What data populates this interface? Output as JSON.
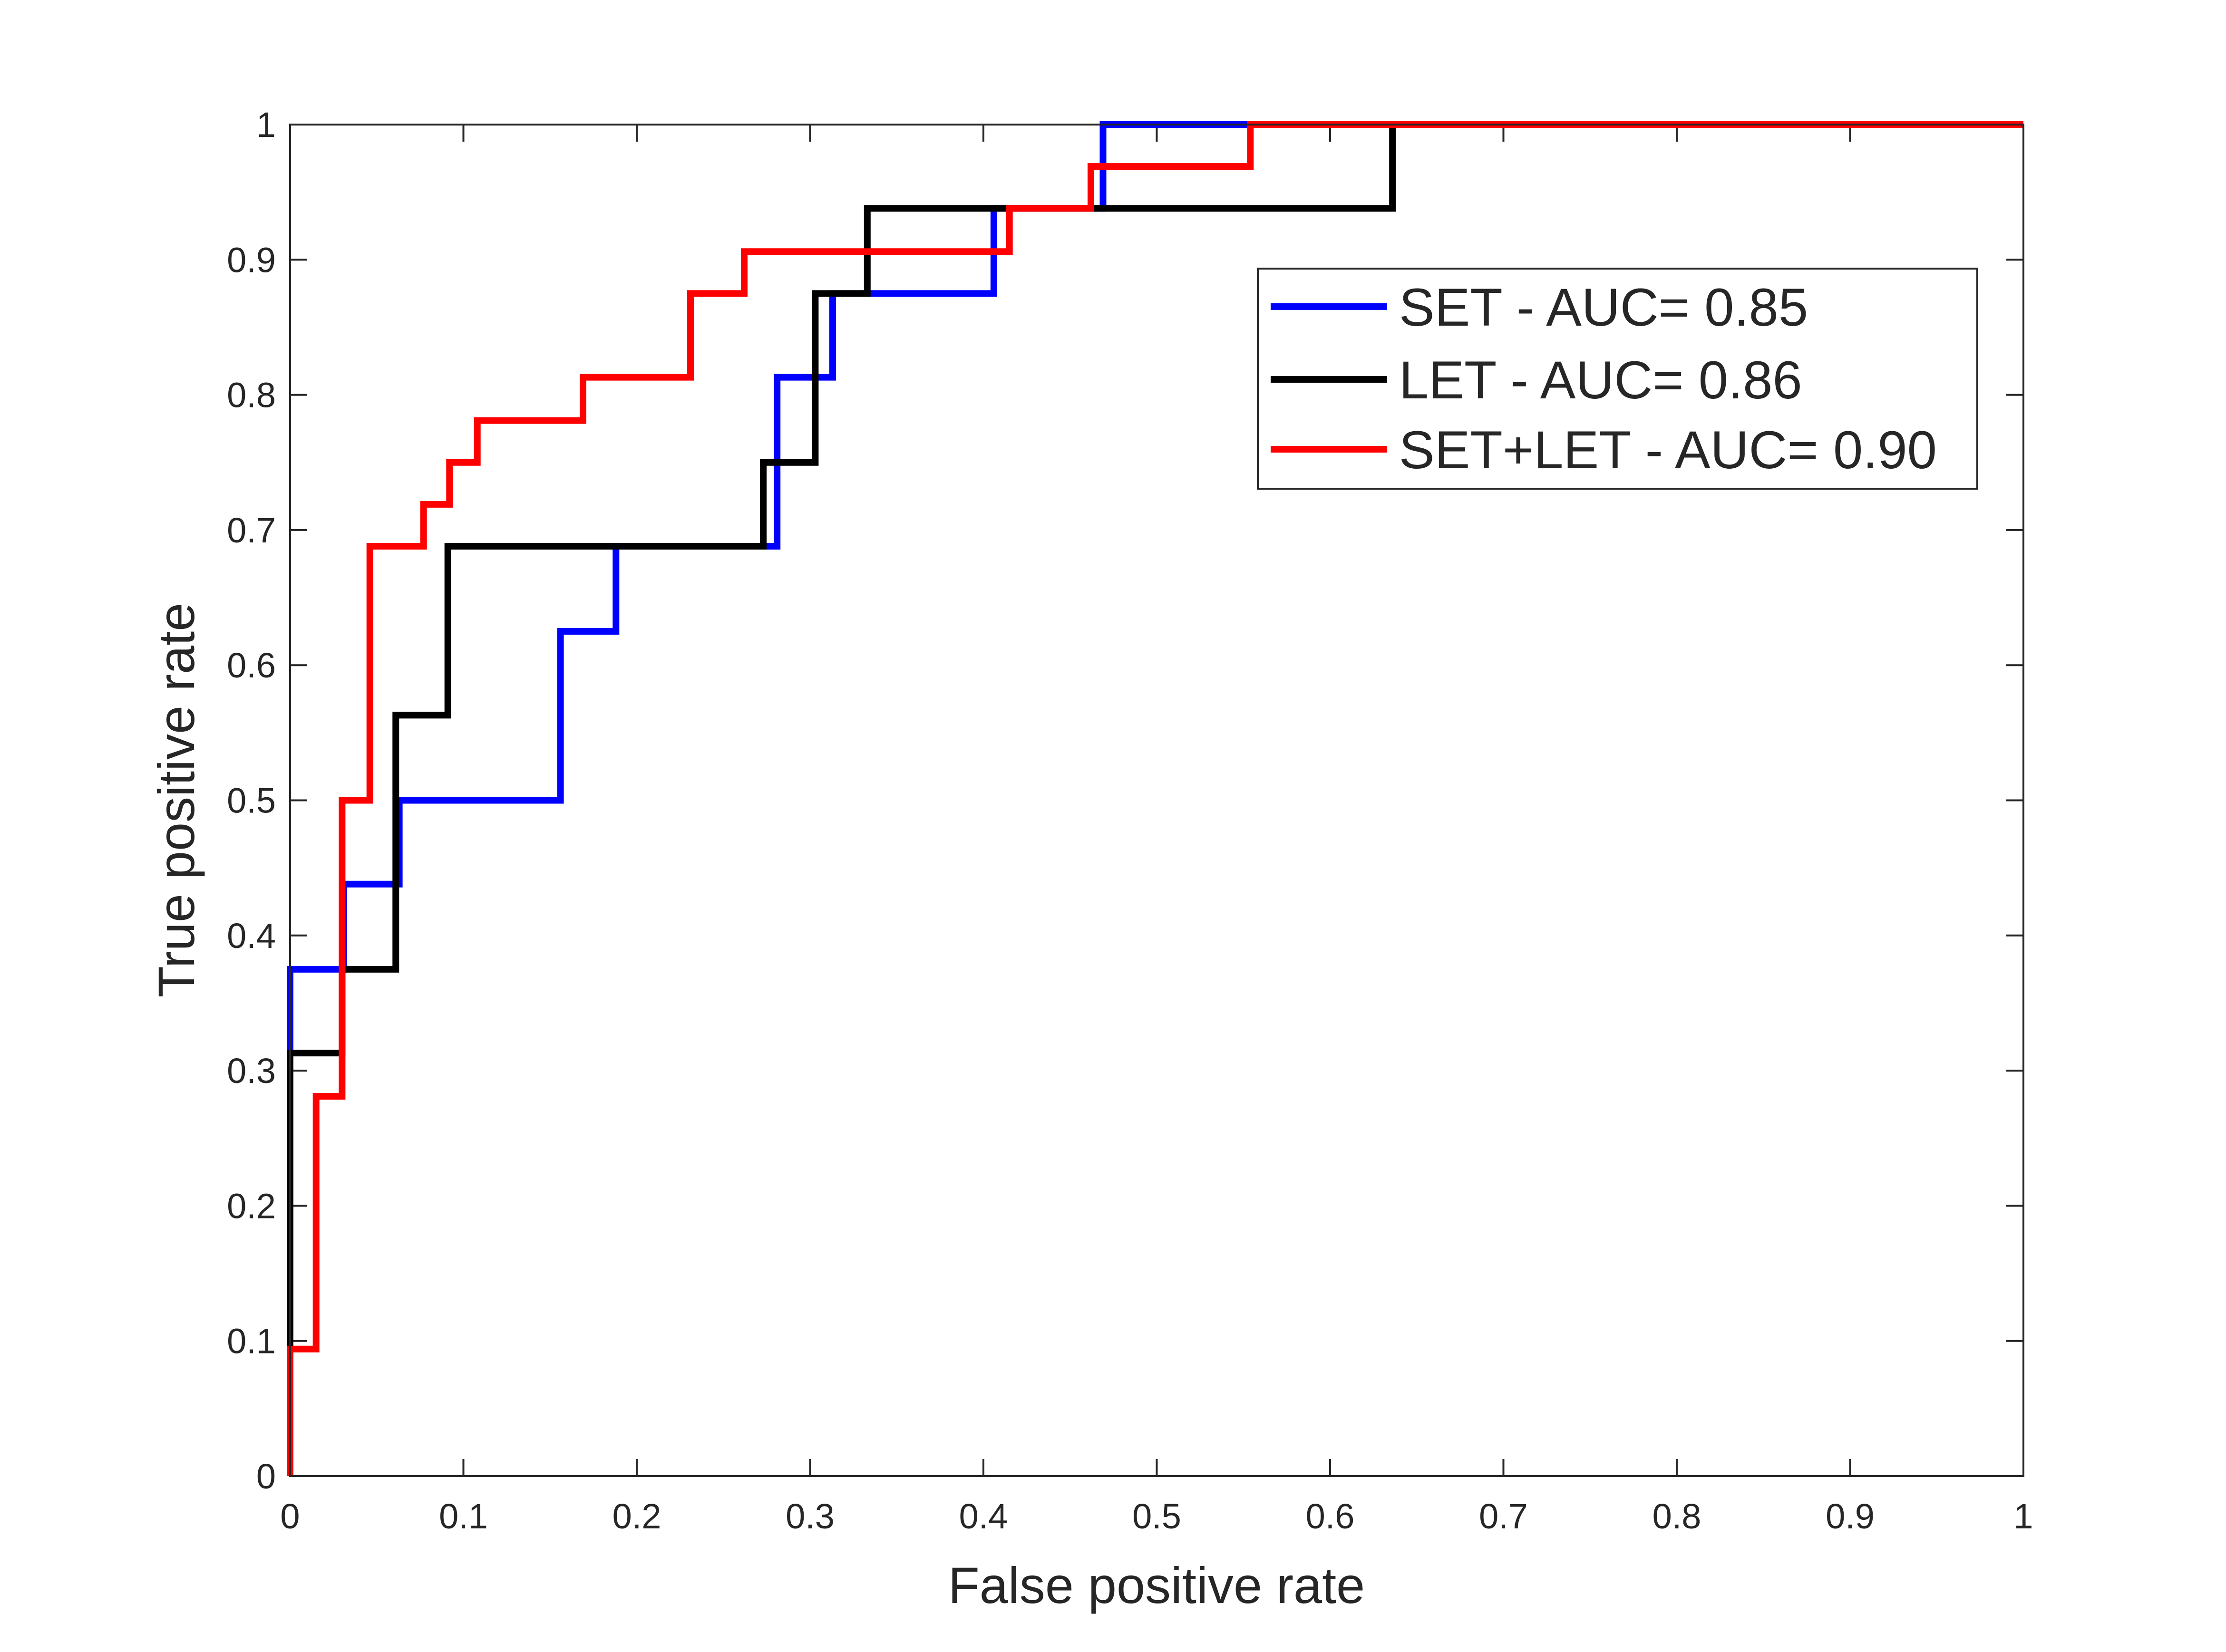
{
  "chart_data": {
    "type": "line",
    "title": "",
    "xlabel": "False positive rate",
    "ylabel": "True positive rate",
    "xlim": [
      0,
      1
    ],
    "ylim": [
      0,
      1
    ],
    "grid": false,
    "legend_position": "top-right",
    "x_ticks": [
      "0",
      "0.1",
      "0.2",
      "0.3",
      "0.4",
      "0.5",
      "0.6",
      "0.7",
      "0.8",
      "0.9",
      "1"
    ],
    "y_ticks": [
      "0",
      "0.1",
      "0.2",
      "0.3",
      "0.4",
      "0.5",
      "0.6",
      "0.7",
      "0.8",
      "0.9",
      "1"
    ],
    "series": [
      {
        "name": "SET - AUC= 0.85",
        "color": "#0000ff",
        "x": [
          0,
          0,
          0.031,
          0.031,
          0.063,
          0.063,
          0.156,
          0.156,
          0.188,
          0.188,
          0.281,
          0.281,
          0.313,
          0.313,
          0.406,
          0.406,
          0.469,
          0.469,
          1
        ],
        "y": [
          0,
          0.375,
          0.375,
          0.438,
          0.438,
          0.5,
          0.5,
          0.625,
          0.625,
          0.688,
          0.688,
          0.813,
          0.813,
          0.875,
          0.875,
          0.938,
          0.938,
          1,
          1
        ]
      },
      {
        "name": "LET - AUC= 0.86",
        "color": "#000000",
        "x": [
          0,
          0,
          0.03,
          0.03,
          0.061,
          0.061,
          0.091,
          0.091,
          0.273,
          0.273,
          0.303,
          0.303,
          0.333,
          0.333,
          0.636,
          0.636,
          1
        ],
        "y": [
          0,
          0.313,
          0.313,
          0.375,
          0.375,
          0.563,
          0.563,
          0.688,
          0.688,
          0.75,
          0.75,
          0.875,
          0.875,
          0.938,
          0.938,
          1,
          1
        ]
      },
      {
        "name": "SET+LET - AUC= 0.90",
        "color": "#ff0000",
        "x": [
          0,
          0,
          0.015,
          0.015,
          0.03,
          0.03,
          0.046,
          0.046,
          0.077,
          0.077,
          0.092,
          0.092,
          0.108,
          0.108,
          0.169,
          0.169,
          0.231,
          0.231,
          0.262,
          0.262,
          0.415,
          0.415,
          0.462,
          0.462,
          0.554,
          0.554,
          1
        ],
        "y": [
          0,
          0.094,
          0.094,
          0.281,
          0.281,
          0.5,
          0.5,
          0.688,
          0.688,
          0.719,
          0.719,
          0.75,
          0.75,
          0.781,
          0.781,
          0.813,
          0.813,
          0.875,
          0.875,
          0.906,
          0.906,
          0.938,
          0.938,
          0.969,
          0.969,
          1,
          1
        ]
      }
    ]
  }
}
